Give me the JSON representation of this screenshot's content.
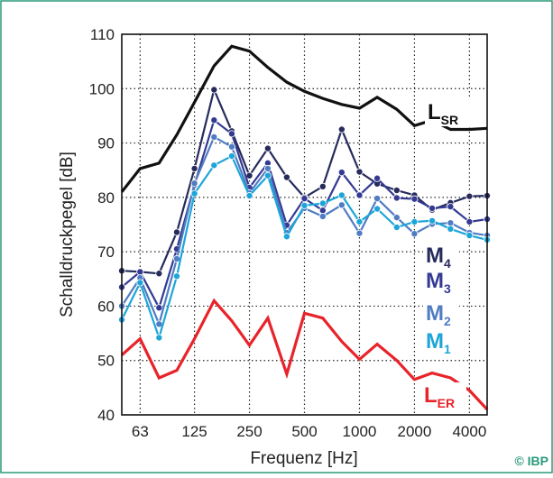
{
  "chart_data": {
    "type": "line",
    "xlabel": "Frequenz [Hz]",
    "ylabel": "Schalldruckpegel [dB]",
    "ylim": [
      40,
      110
    ],
    "x_scale": "log",
    "x": [
      50,
      63,
      80,
      100,
      125,
      160,
      200,
      250,
      315,
      400,
      500,
      630,
      800,
      1000,
      1250,
      1600,
      2000,
      2500,
      3150,
      4000,
      5000
    ],
    "x_ticks": [
      {
        "value": 63,
        "label": "63"
      },
      {
        "value": 125,
        "label": "125"
      },
      {
        "value": 250,
        "label": "250"
      },
      {
        "value": 500,
        "label": "500"
      },
      {
        "value": 1000,
        "label": "1000"
      },
      {
        "value": 2000,
        "label": "2000"
      },
      {
        "value": 4000,
        "label": "4000"
      }
    ],
    "y_ticks": [
      {
        "value": 40,
        "label": "40"
      },
      {
        "value": 50,
        "label": "50"
      },
      {
        "value": 60,
        "label": "60"
      },
      {
        "value": 70,
        "label": "70"
      },
      {
        "value": 80,
        "label": "80"
      },
      {
        "value": 90,
        "label": "90"
      },
      {
        "value": 100,
        "label": "100"
      },
      {
        "value": 110,
        "label": "110"
      }
    ],
    "grid": true,
    "series": [
      {
        "key": "LSR",
        "label_main": "L",
        "label_sub": "SR",
        "color": "#111111",
        "markers": false,
        "values": [
          81,
          85.3,
          86.3,
          91.5,
          97.5,
          104.2,
          107.8,
          106.9,
          103.9,
          101.2,
          99.5,
          98.2,
          97.1,
          96.4,
          98.4,
          96.2,
          93.2,
          94.2,
          92.5,
          92.5,
          92.7
        ]
      },
      {
        "key": "M4",
        "label_main": "M",
        "label_sub": "4",
        "color": "#262b5c",
        "markers": true,
        "values": [
          66.5,
          66.3,
          66,
          73.6,
          85.3,
          99.8,
          92.2,
          84,
          89,
          83.7,
          80,
          82,
          92.5,
          84.7,
          82.5,
          81.3,
          80.4,
          77.7,
          79,
          80.2,
          80.3
        ]
      },
      {
        "key": "M3",
        "label_main": "M",
        "label_sub": "3",
        "color": "#343a92",
        "markers": true,
        "values": [
          63.5,
          66.3,
          59.7,
          70.5,
          82.3,
          94.2,
          91.7,
          81.8,
          86.3,
          74.9,
          79.8,
          77.6,
          84.6,
          80.4,
          83.5,
          79.9,
          79.7,
          78,
          78.3,
          75.5,
          76
        ]
      },
      {
        "key": "M2",
        "label_main": "M",
        "label_sub": "2",
        "color": "#4f7cc3",
        "markers": true,
        "values": [
          60,
          65.2,
          56.7,
          68.7,
          82.6,
          91.1,
          89.3,
          80.8,
          85.3,
          73.5,
          78,
          76.5,
          78.6,
          73.4,
          79.8,
          76.3,
          73.3,
          75.1,
          75.3,
          73.5,
          73
        ]
      },
      {
        "key": "M1",
        "label_main": "M",
        "label_sub": "1",
        "color": "#1ea5d8",
        "markers": true,
        "values": [
          57.5,
          64.3,
          54.2,
          65.5,
          80.7,
          85.9,
          87.6,
          80.3,
          84,
          72.8,
          78.5,
          78.9,
          80.4,
          75.5,
          77.9,
          74.5,
          75.5,
          75.7,
          74.2,
          73,
          72.2
        ]
      },
      {
        "key": "LER",
        "label_main": "L",
        "label_sub": "ER",
        "color": "#e8232a",
        "markers": false,
        "values": [
          51,
          54,
          46.8,
          48.2,
          54,
          61,
          57.3,
          52.8,
          57.8,
          47.5,
          58.7,
          57.8,
          53.5,
          50.2,
          53,
          50,
          46.5,
          47.7,
          46.8,
          44.5,
          41
        ]
      }
    ]
  },
  "copyright": "© IBP"
}
